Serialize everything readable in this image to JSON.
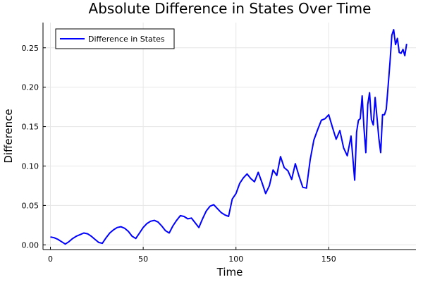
{
  "chart_data": {
    "type": "line",
    "title": "Absolute Difference in States Over Time",
    "xlabel": "Time",
    "ylabel": "Difference",
    "xlim": [
      -4,
      197
    ],
    "ylim": [
      -0.006,
      0.282
    ],
    "xticks": [
      0,
      50,
      100,
      150
    ],
    "yticks": [
      0.0,
      0.05,
      0.1,
      0.15,
      0.2,
      0.25
    ],
    "xtick_labels": [
      "0",
      "50",
      "100",
      "150"
    ],
    "ytick_labels": [
      "0.00",
      "0.05",
      "0.10",
      "0.15",
      "0.20",
      "0.25"
    ],
    "grid": true,
    "legend_position": "top-left",
    "series": [
      {
        "name": "Difference in States",
        "color": "#0000ff",
        "x": [
          0,
          2,
          4,
          6,
          8,
          10,
          12,
          14,
          16,
          18,
          20,
          22,
          24,
          26,
          28,
          30,
          32,
          34,
          36,
          38,
          40,
          42,
          44,
          46,
          48,
          50,
          52,
          54,
          56,
          58,
          60,
          62,
          64,
          66,
          68,
          70,
          72,
          74,
          76,
          78,
          80,
          82,
          84,
          86,
          88,
          90,
          92,
          94,
          96,
          98,
          100,
          102,
          104,
          106,
          108,
          110,
          112,
          114,
          116,
          118,
          120,
          122,
          124,
          126,
          128,
          130,
          132,
          134,
          136,
          138,
          140,
          142,
          144,
          146,
          148,
          150,
          152,
          154,
          156,
          158,
          160,
          162,
          164,
          165,
          166,
          167,
          168,
          169,
          170,
          171,
          172,
          173,
          174,
          175,
          176,
          177,
          178,
          179,
          180,
          181,
          182,
          183,
          184,
          185,
          186,
          187,
          188,
          189,
          190,
          191,
          192
        ],
        "y": [
          0.01,
          0.009,
          0.007,
          0.004,
          0.001,
          0.004,
          0.008,
          0.011,
          0.013,
          0.015,
          0.014,
          0.011,
          0.007,
          0.003,
          0.002,
          0.009,
          0.015,
          0.019,
          0.022,
          0.023,
          0.021,
          0.017,
          0.011,
          0.008,
          0.015,
          0.022,
          0.027,
          0.03,
          0.031,
          0.029,
          0.024,
          0.018,
          0.015,
          0.024,
          0.031,
          0.037,
          0.036,
          0.033,
          0.034,
          0.028,
          0.022,
          0.033,
          0.043,
          0.049,
          0.051,
          0.046,
          0.041,
          0.038,
          0.036,
          0.058,
          0.065,
          0.078,
          0.085,
          0.09,
          0.084,
          0.08,
          0.092,
          0.079,
          0.065,
          0.075,
          0.095,
          0.088,
          0.112,
          0.098,
          0.094,
          0.083,
          0.103,
          0.087,
          0.073,
          0.072,
          0.108,
          0.133,
          0.146,
          0.158,
          0.16,
          0.165,
          0.149,
          0.134,
          0.145,
          0.123,
          0.113,
          0.138,
          0.082,
          0.143,
          0.158,
          0.16,
          0.189,
          0.148,
          0.117,
          0.178,
          0.193,
          0.159,
          0.152,
          0.187,
          0.162,
          0.135,
          0.117,
          0.165,
          0.165,
          0.172,
          0.201,
          0.232,
          0.266,
          0.273,
          0.254,
          0.262,
          0.244,
          0.243,
          0.248,
          0.24,
          0.255
        ]
      }
    ]
  }
}
